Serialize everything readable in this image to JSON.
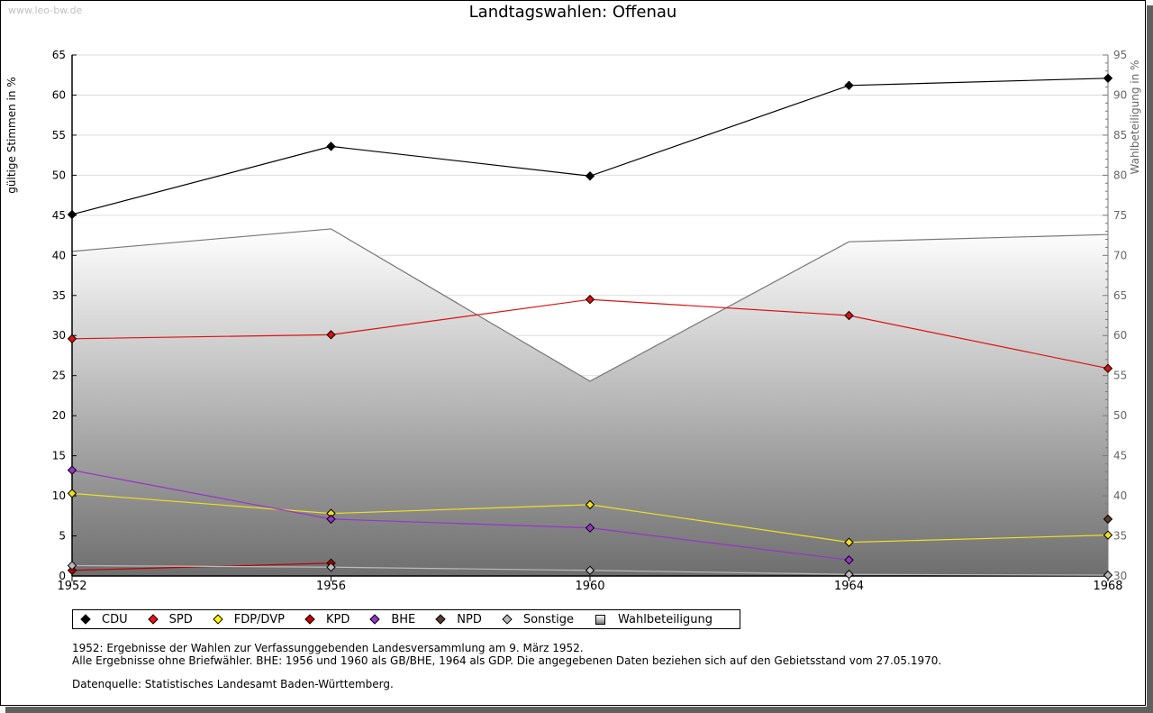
{
  "watermark": "www.leo-bw.de",
  "chart_data": {
    "type": "line",
    "title": "Landtagswahlen: Offenau",
    "ylabel": "gültige Stimmen in %",
    "y2label": "Wahlbeteiligung in %",
    "xlabel": "",
    "x": [
      "1952",
      "1956",
      "1960",
      "1964",
      "1968"
    ],
    "ylim": [
      0,
      65
    ],
    "y2lim": [
      30,
      95
    ],
    "yticks": [
      "0",
      "5",
      "10",
      "15",
      "20",
      "25",
      "30",
      "35",
      "40",
      "45",
      "50",
      "55",
      "60",
      "65"
    ],
    "y2ticks": [
      "30",
      "35",
      "40",
      "45",
      "50",
      "55",
      "60",
      "65",
      "70",
      "75",
      "80",
      "85",
      "90",
      "95"
    ],
    "grid": true,
    "legend_position": "bottom",
    "series": [
      {
        "name": "CDU",
        "color": "#000000",
        "values": [
          45.1,
          53.6,
          49.9,
          61.2,
          62.1
        ]
      },
      {
        "name": "SPD",
        "color": "#dd1111",
        "values": [
          29.6,
          30.1,
          34.5,
          32.5,
          25.9
        ]
      },
      {
        "name": "FDP/DVP",
        "color": "#f0e020",
        "values": [
          10.3,
          7.8,
          8.9,
          4.2,
          5.1
        ]
      },
      {
        "name": "KPD",
        "color": "#bb0000",
        "values": [
          0.7,
          1.6,
          null,
          null,
          null
        ]
      },
      {
        "name": "BHE",
        "color": "#9933cc",
        "values": [
          13.2,
          7.1,
          6.0,
          2.0,
          null
        ]
      },
      {
        "name": "NPD",
        "color": "#5a3a28",
        "values": [
          null,
          null,
          null,
          null,
          7.1
        ]
      },
      {
        "name": "Sonstige",
        "color": "#bbbbbb",
        "values": [
          1.3,
          1.1,
          0.7,
          0.2,
          0.1
        ]
      }
    ],
    "area_series": {
      "name": "Wahlbeteiligung",
      "axis": "right",
      "values": [
        70.5,
        73.3,
        54.3,
        71.7,
        72.6
      ]
    }
  },
  "legend": [
    {
      "label": "CDU",
      "color": "#000000",
      "shape": "diamond"
    },
    {
      "label": "SPD",
      "color": "#ee1111",
      "shape": "diamond"
    },
    {
      "label": "FDP/DVP",
      "color": "#ffff00",
      "shape": "diamond"
    },
    {
      "label": "KPD",
      "color": "#cc0000",
      "shape": "diamond"
    },
    {
      "label": "BHE",
      "color": "#9933cc",
      "shape": "diamond"
    },
    {
      "label": "NPD",
      "color": "#5a3a28",
      "shape": "diamond"
    },
    {
      "label": "Sonstige",
      "color": "#bbbbbb",
      "shape": "diamond"
    },
    {
      "label": "Wahlbeteiligung",
      "color": "#bbbbbb",
      "shape": "square"
    }
  ],
  "notes": {
    "line1": "1952: Ergebnisse der Wahlen zur Verfassunggebenden Landesversammlung am 9. März 1952.",
    "line2": "Alle Ergebnisse ohne Briefwähler. BHE: 1956 und 1960 als GB/BHE, 1964 als GDP. Die angegebenen Daten beziehen sich auf den Gebietsstand vom 27.05.1970.",
    "source": "Datenquelle: Statistisches Landesamt Baden-Württemberg."
  }
}
